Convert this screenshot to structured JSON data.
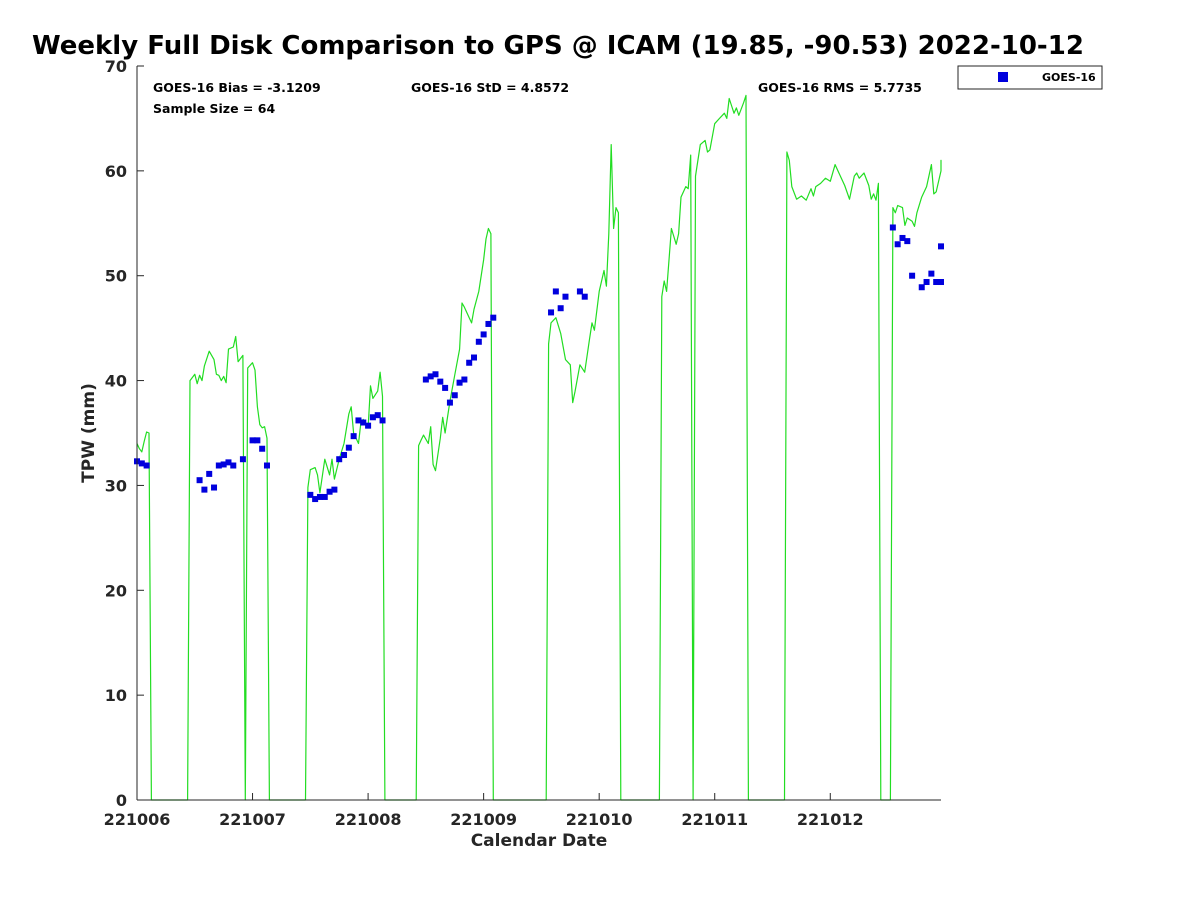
{
  "chart_data": {
    "type": "line",
    "title": "Weekly Full Disk Comparison to GPS @ ICAM (19.85, -90.53) 2022-10-12",
    "xlabel": "Calendar Date",
    "ylabel": "TPW (mm)",
    "xlim": [
      "2022-10-06 00:00",
      "2022-10-12 23:00"
    ],
    "ylim": [
      0,
      70
    ],
    "x_ticks": [
      "221006",
      "221007",
      "221008",
      "221009",
      "221010",
      "221011",
      "221012"
    ],
    "y_ticks": [
      0,
      10,
      20,
      30,
      40,
      50,
      60,
      70
    ],
    "grid": false,
    "legend_position": "top-right",
    "colors": {
      "gps_line": "#22dd22",
      "goes_marker": "#0000dd",
      "axis": "#262626"
    },
    "stats": {
      "bias": "GOES-16 Bias = -3.1209",
      "std": "GOES-16 StD = 4.8572",
      "rms": "GOES-16 RMS = 5.7735",
      "sample": "Sample Size = 64"
    },
    "series": [
      {
        "kind": "line",
        "points": [
          [
            "2022-10-06 00:00",
            34.0
          ],
          [
            "2022-10-06 00:30",
            33.5
          ],
          [
            "2022-10-06 01:00",
            33.2
          ],
          [
            "2022-10-06 01:30",
            34.2
          ],
          [
            "2022-10-06 02:00",
            35.1
          ],
          [
            "2022-10-06 02:30",
            35.0
          ],
          [
            "2022-10-06 03:00",
            0.0
          ],
          [
            "2022-10-06 10:30",
            0.0
          ],
          [
            "2022-10-06 11:00",
            40.0
          ],
          [
            "2022-10-06 12:00",
            40.6
          ],
          [
            "2022-10-06 12:30",
            39.7
          ],
          [
            "2022-10-06 13:00",
            40.5
          ],
          [
            "2022-10-06 13:30",
            40.0
          ],
          [
            "2022-10-06 14:00",
            41.4
          ],
          [
            "2022-10-06 15:00",
            42.8
          ],
          [
            "2022-10-06 16:00",
            42.0
          ],
          [
            "2022-10-06 16:30",
            40.6
          ],
          [
            "2022-10-06 17:00",
            40.5
          ],
          [
            "2022-10-06 17:30",
            40.0
          ],
          [
            "2022-10-06 18:00",
            40.4
          ],
          [
            "2022-10-06 18:30",
            39.8
          ],
          [
            "2022-10-06 19:00",
            43.0
          ],
          [
            "2022-10-06 20:00",
            43.2
          ],
          [
            "2022-10-06 20:30",
            44.2
          ],
          [
            "2022-10-06 21:00",
            41.8
          ],
          [
            "2022-10-06 22:00",
            42.4
          ],
          [
            "2022-10-06 22:30",
            0.0
          ],
          [
            "2022-10-06 23:00",
            41.2
          ],
          [
            "2022-10-07 00:00",
            41.7
          ],
          [
            "2022-10-07 00:30",
            41.0
          ],
          [
            "2022-10-07 01:00",
            37.5
          ],
          [
            "2022-10-07 01:30",
            35.8
          ],
          [
            "2022-10-07 02:00",
            35.5
          ],
          [
            "2022-10-07 02:30",
            35.6
          ],
          [
            "2022-10-07 03:00",
            34.5
          ],
          [
            "2022-10-07 03:30",
            0.0
          ],
          [
            "2022-10-07 11:00",
            0.0
          ],
          [
            "2022-10-07 11:30",
            29.8
          ],
          [
            "2022-10-07 12:00",
            31.5
          ],
          [
            "2022-10-07 13:00",
            31.7
          ],
          [
            "2022-10-07 13:30",
            31.0
          ],
          [
            "2022-10-07 14:00",
            29.3
          ],
          [
            "2022-10-07 15:00",
            32.5
          ],
          [
            "2022-10-07 16:00",
            31.0
          ],
          [
            "2022-10-07 16:30",
            32.5
          ],
          [
            "2022-10-07 17:00",
            30.6
          ],
          [
            "2022-10-07 18:00",
            32.5
          ],
          [
            "2022-10-07 19:00",
            34.0
          ],
          [
            "2022-10-07 20:00",
            36.8
          ],
          [
            "2022-10-07 20:30",
            37.5
          ],
          [
            "2022-10-07 21:00",
            35.0
          ],
          [
            "2022-10-07 22:00",
            34.0
          ],
          [
            "2022-10-07 22:30",
            36.0
          ],
          [
            "2022-10-07 23:00",
            36.3
          ],
          [
            "2022-10-08 00:00",
            35.5
          ],
          [
            "2022-10-08 00:30",
            39.5
          ],
          [
            "2022-10-08 01:00",
            38.3
          ],
          [
            "2022-10-08 02:00",
            39.0
          ],
          [
            "2022-10-08 02:30",
            40.8
          ],
          [
            "2022-10-08 03:00",
            38.5
          ],
          [
            "2022-10-08 03:30",
            0.0
          ],
          [
            "2022-10-08 10:00",
            0.0
          ],
          [
            "2022-10-08 10:30",
            33.8
          ],
          [
            "2022-10-08 11:00",
            34.3
          ],
          [
            "2022-10-08 11:30",
            34.8
          ],
          [
            "2022-10-08 12:30",
            34.0
          ],
          [
            "2022-10-08 13:00",
            35.6
          ],
          [
            "2022-10-08 13:30",
            32.0
          ],
          [
            "2022-10-08 14:00",
            31.4
          ],
          [
            "2022-10-08 15:00",
            34.5
          ],
          [
            "2022-10-08 15:30",
            36.5
          ],
          [
            "2022-10-08 16:00",
            35.0
          ],
          [
            "2022-10-08 17:00",
            38.0
          ],
          [
            "2022-10-08 18:00",
            40.5
          ],
          [
            "2022-10-08 19:00",
            43.0
          ],
          [
            "2022-10-08 19:30",
            47.4
          ],
          [
            "2022-10-08 20:00",
            47.0
          ],
          [
            "2022-10-08 21:00",
            46.0
          ],
          [
            "2022-10-08 21:30",
            45.5
          ],
          [
            "2022-10-08 22:00",
            46.8
          ],
          [
            "2022-10-08 23:00",
            48.5
          ],
          [
            "2022-10-09 00:00",
            51.5
          ],
          [
            "2022-10-09 00:30",
            53.5
          ],
          [
            "2022-10-09 01:00",
            54.5
          ],
          [
            "2022-10-09 01:30",
            54.0
          ],
          [
            "2022-10-09 02:00",
            0.0
          ],
          [
            "2022-10-09 13:00",
            0.0
          ],
          [
            "2022-10-09 13:30",
            43.5
          ],
          [
            "2022-10-09 14:00",
            45.5
          ],
          [
            "2022-10-09 15:00",
            46.0
          ],
          [
            "2022-10-09 16:00",
            44.5
          ],
          [
            "2022-10-09 17:00",
            42.0
          ],
          [
            "2022-10-09 18:00",
            41.5
          ],
          [
            "2022-10-09 18:30",
            37.9
          ],
          [
            "2022-10-09 19:00",
            39.0
          ],
          [
            "2022-10-09 20:00",
            41.5
          ],
          [
            "2022-10-09 21:00",
            40.8
          ],
          [
            "2022-10-09 22:00",
            44.0
          ],
          [
            "2022-10-09 22:30",
            45.5
          ],
          [
            "2022-10-09 23:00",
            44.8
          ],
          [
            "2022-10-10 00:00",
            48.5
          ],
          [
            "2022-10-10 01:00",
            50.5
          ],
          [
            "2022-10-10 01:30",
            49.0
          ],
          [
            "2022-10-10 02:00",
            54.0
          ],
          [
            "2022-10-10 02:30",
            62.5
          ],
          [
            "2022-10-10 03:00",
            54.5
          ],
          [
            "2022-10-10 03:30",
            56.5
          ],
          [
            "2022-10-10 04:00",
            56.0
          ],
          [
            "2022-10-10 04:30",
            0.0
          ],
          [
            "2022-10-10 12:30",
            0.0
          ],
          [
            "2022-10-10 13:00",
            48.0
          ],
          [
            "2022-10-10 13:30",
            49.5
          ],
          [
            "2022-10-10 14:00",
            48.5
          ],
          [
            "2022-10-10 15:00",
            54.5
          ],
          [
            "2022-10-10 16:00",
            53.0
          ],
          [
            "2022-10-10 16:30",
            54.0
          ],
          [
            "2022-10-10 17:00",
            57.5
          ],
          [
            "2022-10-10 18:00",
            58.5
          ],
          [
            "2022-10-10 18:30",
            58.3
          ],
          [
            "2022-10-10 19:00",
            61.5
          ],
          [
            "2022-10-10 19:30",
            0.0
          ],
          [
            "2022-10-10 20:00",
            59.5
          ],
          [
            "2022-10-10 21:00",
            62.5
          ],
          [
            "2022-10-10 22:00",
            62.9
          ],
          [
            "2022-10-10 22:30",
            61.8
          ],
          [
            "2022-10-10 23:00",
            62.0
          ],
          [
            "2022-10-11 00:00",
            64.5
          ],
          [
            "2022-10-11 01:00",
            65.0
          ],
          [
            "2022-10-11 02:00",
            65.5
          ],
          [
            "2022-10-11 02:30",
            65.0
          ],
          [
            "2022-10-11 03:00",
            66.9
          ],
          [
            "2022-10-11 04:00",
            65.5
          ],
          [
            "2022-10-11 04:30",
            66.0
          ],
          [
            "2022-10-11 05:00",
            65.3
          ],
          [
            "2022-10-11 06:00",
            66.5
          ],
          [
            "2022-10-11 06:30",
            67.2
          ],
          [
            "2022-10-11 07:00",
            0.0
          ],
          [
            "2022-10-11 14:30",
            0.0
          ],
          [
            "2022-10-11 15:00",
            61.8
          ],
          [
            "2022-10-11 15:30",
            61.0
          ],
          [
            "2022-10-11 16:00",
            58.5
          ],
          [
            "2022-10-11 17:00",
            57.3
          ],
          [
            "2022-10-11 18:00",
            57.6
          ],
          [
            "2022-10-11 19:00",
            57.2
          ],
          [
            "2022-10-11 20:00",
            58.3
          ],
          [
            "2022-10-11 20:30",
            57.6
          ],
          [
            "2022-10-11 21:00",
            58.5
          ],
          [
            "2022-10-11 22:00",
            58.8
          ],
          [
            "2022-10-11 23:00",
            59.3
          ],
          [
            "2022-10-12 00:00",
            59.0
          ],
          [
            "2022-10-12 01:00",
            60.6
          ],
          [
            "2022-10-12 02:00",
            59.6
          ],
          [
            "2022-10-12 03:00",
            58.6
          ],
          [
            "2022-10-12 04:00",
            57.3
          ],
          [
            "2022-10-12 05:00",
            59.5
          ],
          [
            "2022-10-12 05:30",
            59.8
          ],
          [
            "2022-10-12 06:00",
            59.3
          ],
          [
            "2022-10-12 07:00",
            59.8
          ],
          [
            "2022-10-12 08:00",
            58.6
          ],
          [
            "2022-10-12 08:30",
            57.3
          ],
          [
            "2022-10-12 09:00",
            57.8
          ],
          [
            "2022-10-12 09:30",
            57.2
          ],
          [
            "2022-10-12 10:00",
            58.8
          ],
          [
            "2022-10-12 10:30",
            0.0
          ],
          [
            "2022-10-12 12:30",
            0.0
          ],
          [
            "2022-10-12 13:00",
            56.5
          ],
          [
            "2022-10-12 13:30",
            56.0
          ],
          [
            "2022-10-12 14:00",
            56.7
          ],
          [
            "2022-10-12 15:00",
            56.5
          ],
          [
            "2022-10-12 15:30",
            54.8
          ],
          [
            "2022-10-12 16:00",
            55.5
          ],
          [
            "2022-10-12 17:00",
            55.2
          ],
          [
            "2022-10-12 17:30",
            54.7
          ],
          [
            "2022-10-12 18:00",
            56.0
          ],
          [
            "2022-10-12 19:00",
            57.5
          ],
          [
            "2022-10-12 20:00",
            58.5
          ],
          [
            "2022-10-12 21:00",
            60.6
          ],
          [
            "2022-10-12 21:30",
            57.8
          ],
          [
            "2022-10-12 22:00",
            58.0
          ],
          [
            "2022-10-12 23:00",
            60.0
          ],
          [
            "2022-10-12 23:30",
            61.0
          ],
          [
            "2022-10-13 00:00",
            61.0
          ],
          [
            "2022-10-13 00:30",
            60.3
          ]
        ]
      },
      {
        "name": "GOES-16",
        "kind": "scatter",
        "points": [
          [
            "2022-10-06 00:00",
            32.3
          ],
          [
            "2022-10-06 01:00",
            32.1
          ],
          [
            "2022-10-06 02:00",
            31.9
          ],
          [
            "2022-10-06 13:00",
            30.5
          ],
          [
            "2022-10-06 14:00",
            29.6
          ],
          [
            "2022-10-06 15:00",
            31.1
          ],
          [
            "2022-10-06 16:00",
            29.8
          ],
          [
            "2022-10-06 17:00",
            31.9
          ],
          [
            "2022-10-06 18:00",
            32.0
          ],
          [
            "2022-10-06 19:00",
            32.2
          ],
          [
            "2022-10-06 20:00",
            31.9
          ],
          [
            "2022-10-06 22:00",
            32.5
          ],
          [
            "2022-10-07 00:00",
            34.3
          ],
          [
            "2022-10-07 01:00",
            34.3
          ],
          [
            "2022-10-07 02:00",
            33.5
          ],
          [
            "2022-10-07 03:00",
            31.9
          ],
          [
            "2022-10-07 12:00",
            29.1
          ],
          [
            "2022-10-07 13:00",
            28.7
          ],
          [
            "2022-10-07 14:00",
            28.9
          ],
          [
            "2022-10-07 15:00",
            28.9
          ],
          [
            "2022-10-07 16:00",
            29.4
          ],
          [
            "2022-10-07 17:00",
            29.6
          ],
          [
            "2022-10-07 18:00",
            32.5
          ],
          [
            "2022-10-07 19:00",
            32.9
          ],
          [
            "2022-10-07 20:00",
            33.6
          ],
          [
            "2022-10-07 21:00",
            34.7
          ],
          [
            "2022-10-07 22:00",
            36.2
          ],
          [
            "2022-10-07 23:00",
            36.0
          ],
          [
            "2022-10-08 00:00",
            35.7
          ],
          [
            "2022-10-08 01:00",
            36.5
          ],
          [
            "2022-10-08 02:00",
            36.7
          ],
          [
            "2022-10-08 03:00",
            36.2
          ],
          [
            "2022-10-08 12:00",
            40.1
          ],
          [
            "2022-10-08 13:00",
            40.4
          ],
          [
            "2022-10-08 14:00",
            40.6
          ],
          [
            "2022-10-08 15:00",
            39.9
          ],
          [
            "2022-10-08 16:00",
            39.3
          ],
          [
            "2022-10-08 17:00",
            37.9
          ],
          [
            "2022-10-08 18:00",
            38.6
          ],
          [
            "2022-10-08 19:00",
            39.8
          ],
          [
            "2022-10-08 20:00",
            40.1
          ],
          [
            "2022-10-08 21:00",
            41.7
          ],
          [
            "2022-10-08 22:00",
            42.2
          ],
          [
            "2022-10-08 23:00",
            43.7
          ],
          [
            "2022-10-09 00:00",
            44.4
          ],
          [
            "2022-10-09 01:00",
            45.4
          ],
          [
            "2022-10-09 02:00",
            46.0
          ],
          [
            "2022-10-09 14:00",
            46.5
          ],
          [
            "2022-10-09 15:00",
            48.5
          ],
          [
            "2022-10-09 16:00",
            46.9
          ],
          [
            "2022-10-09 17:00",
            48.0
          ],
          [
            "2022-10-09 20:00",
            48.5
          ],
          [
            "2022-10-09 21:00",
            48.0
          ],
          [
            "2022-10-12 13:00",
            54.6
          ],
          [
            "2022-10-12 14:00",
            53.0
          ],
          [
            "2022-10-12 15:00",
            53.6
          ],
          [
            "2022-10-12 16:00",
            53.3
          ],
          [
            "2022-10-12 17:00",
            50.0
          ],
          [
            "2022-10-12 19:00",
            48.9
          ],
          [
            "2022-10-12 20:00",
            49.4
          ],
          [
            "2022-10-12 21:00",
            50.2
          ],
          [
            "2022-10-12 22:00",
            49.4
          ],
          [
            "2022-10-12 23:00",
            49.4
          ],
          [
            "2022-10-13 00:00",
            49.4
          ],
          [
            "2022-10-13 01:00",
            52.8
          ]
        ]
      }
    ]
  }
}
